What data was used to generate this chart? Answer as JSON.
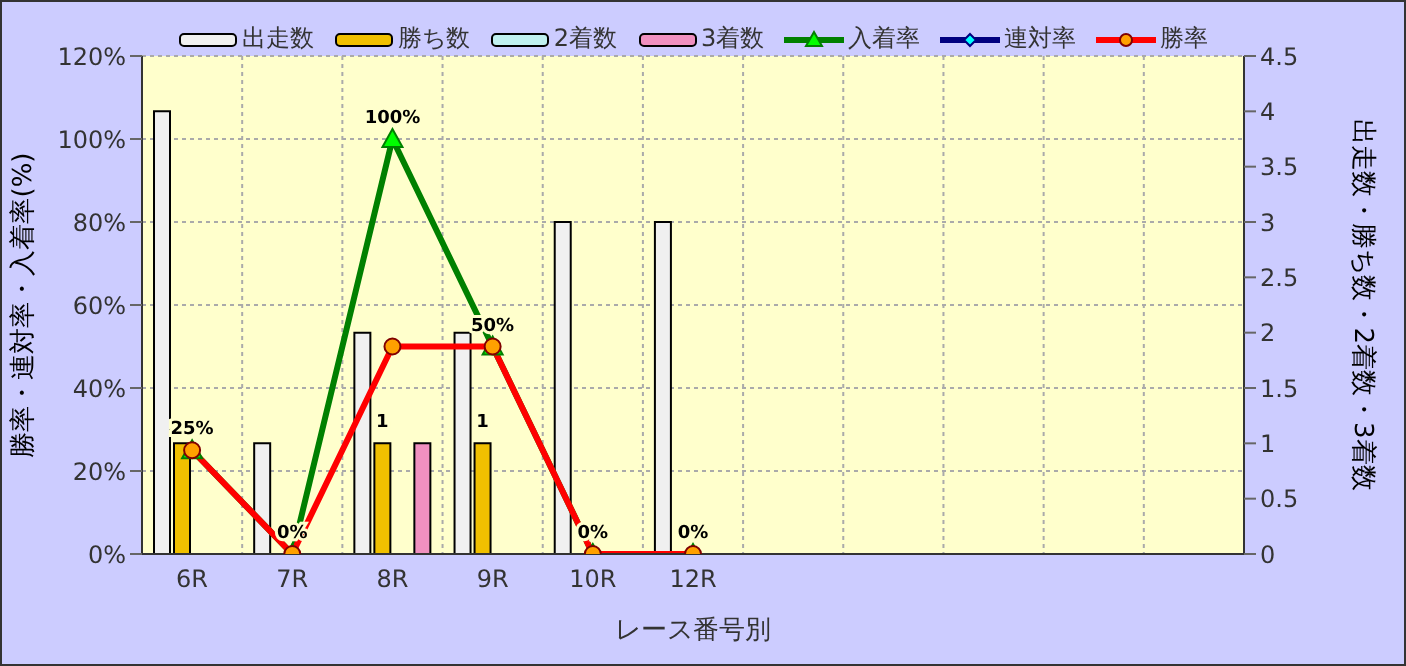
{
  "chart_data": {
    "type": "bar",
    "xlabel": "レース番号別",
    "ylabel": "勝率・連対率・入着率(%)",
    "y2label": "出走数・勝ち数・2着数・3着数",
    "categories": [
      "6R",
      "7R",
      "8R",
      "9R",
      "10R",
      "12R",
      null,
      null,
      null,
      null,
      null
    ],
    "series": [
      {
        "name": "出走数",
        "axis": "y2",
        "color": "#f0f0f0",
        "values": [
          4,
          1,
          2,
          2,
          3,
          3,
          null,
          null,
          null,
          null,
          null
        ]
      },
      {
        "name": "勝ち数",
        "axis": "y2",
        "color": "#f0c000",
        "values": [
          1,
          0,
          1,
          1,
          0,
          0,
          null,
          null,
          null,
          null,
          null
        ],
        "value_labels": [
          null,
          null,
          "1",
          "1",
          null,
          null,
          null,
          null,
          null,
          null,
          null
        ]
      },
      {
        "name": "2着数",
        "axis": "y2",
        "color": "#c0f0f0",
        "values": [
          0,
          0,
          0,
          0,
          0,
          0,
          null,
          null,
          null,
          null,
          null
        ]
      },
      {
        "name": "3着数",
        "axis": "y2",
        "color": "#f090c0",
        "values": [
          0,
          0,
          1,
          0,
          0,
          0,
          null,
          null,
          null,
          null,
          null
        ]
      },
      {
        "name": "入着率",
        "type": "line",
        "axis": "y",
        "color": "#008000",
        "marker": "triangle",
        "values": [
          25,
          0,
          100,
          50,
          0,
          0,
          null,
          null,
          null,
          null,
          null
        ],
        "value_labels": [
          "25%",
          "0%",
          "100%",
          "50%",
          "0%",
          "0%",
          null,
          null,
          null,
          null,
          null
        ]
      },
      {
        "name": "連対率",
        "type": "line",
        "axis": "y",
        "color": "#000080",
        "marker": "diamond",
        "values": [
          null,
          null,
          null,
          null,
          null,
          null,
          null,
          null,
          null,
          null,
          null
        ]
      },
      {
        "name": "勝率",
        "type": "line",
        "axis": "y",
        "color": "#ff0000",
        "marker": "circle",
        "values": [
          25,
          0,
          50,
          50,
          0,
          0,
          null,
          null,
          null,
          null,
          null
        ]
      }
    ],
    "ylim": [
      0,
      120
    ],
    "yticks": [
      {
        "value": 0,
        "label": "0%"
      },
      {
        "value": 20,
        "label": "20%"
      },
      {
        "value": 40,
        "label": "40%"
      },
      {
        "value": 60,
        "label": "60%"
      },
      {
        "value": 80,
        "label": "80%"
      },
      {
        "value": 100,
        "label": "100%"
      },
      {
        "value": 120,
        "label": "120%"
      }
    ],
    "y2lim": [
      0,
      4.5
    ],
    "y2ticks": [
      0,
      0.5,
      1,
      1.5,
      2,
      2.5,
      3,
      3.5,
      4,
      4.5
    ],
    "grid": true,
    "legend": "top"
  }
}
